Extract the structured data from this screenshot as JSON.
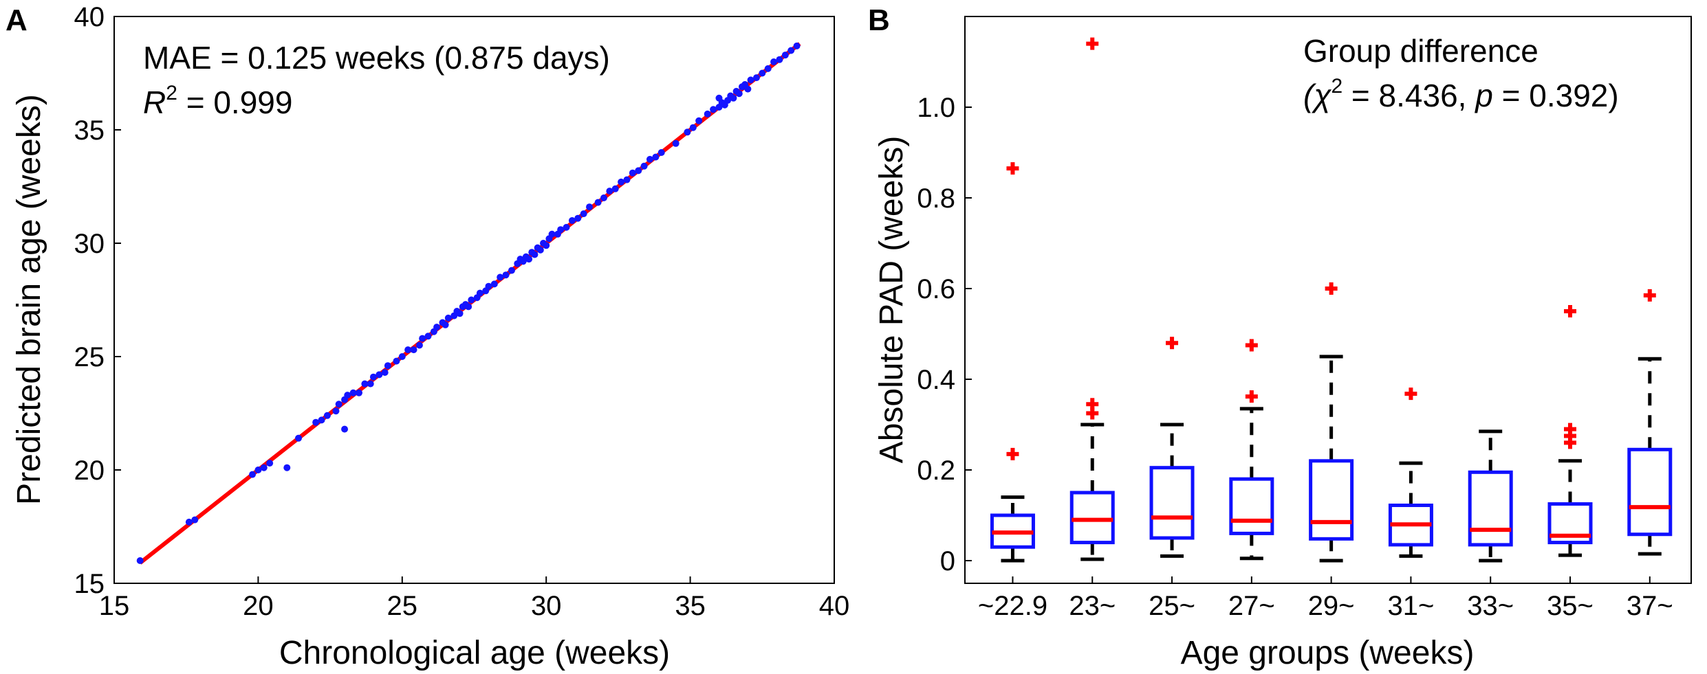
{
  "chart_data": [
    {
      "type": "scatter",
      "panel": "A",
      "xlabel": "Chronological age (weeks)",
      "ylabel": "Predicted brain age (weeks)",
      "xlim": [
        15,
        40
      ],
      "ylim": [
        15,
        40
      ],
      "xticks": [
        15,
        20,
        25,
        30,
        35,
        40
      ],
      "yticks": [
        15,
        20,
        25,
        30,
        35,
        40
      ],
      "annotation_line1": "MAE = 0.125 weeks (0.875 days)",
      "r2_label": "R",
      "r2_sup": "2",
      "r2_value": " = 0.999",
      "fit_line": {
        "x": [
          15.9,
          38.8
        ],
        "y": [
          15.9,
          38.8
        ]
      },
      "points": [
        [
          15.9,
          16.0
        ],
        [
          17.6,
          17.7
        ],
        [
          17.8,
          17.8
        ],
        [
          19.8,
          19.8
        ],
        [
          20.0,
          20.0
        ],
        [
          20.2,
          20.1
        ],
        [
          20.4,
          20.3
        ],
        [
          21.0,
          20.1
        ],
        [
          21.4,
          21.4
        ],
        [
          22.0,
          22.1
        ],
        [
          22.2,
          22.2
        ],
        [
          22.4,
          22.4
        ],
        [
          22.7,
          22.6
        ],
        [
          22.8,
          22.9
        ],
        [
          23.0,
          23.1
        ],
        [
          23.0,
          21.8
        ],
        [
          23.1,
          23.3
        ],
        [
          23.3,
          23.4
        ],
        [
          23.5,
          23.4
        ],
        [
          23.7,
          23.8
        ],
        [
          23.9,
          23.8
        ],
        [
          24.0,
          24.1
        ],
        [
          24.2,
          24.2
        ],
        [
          24.4,
          24.3
        ],
        [
          24.5,
          24.6
        ],
        [
          24.8,
          24.8
        ],
        [
          25.0,
          25.0
        ],
        [
          25.2,
          25.3
        ],
        [
          25.4,
          25.3
        ],
        [
          25.6,
          25.5
        ],
        [
          25.7,
          25.8
        ],
        [
          25.9,
          25.9
        ],
        [
          26.1,
          26.1
        ],
        [
          26.2,
          26.3
        ],
        [
          26.4,
          26.5
        ],
        [
          26.5,
          26.4
        ],
        [
          26.6,
          26.7
        ],
        [
          26.8,
          26.8
        ],
        [
          26.9,
          27.0
        ],
        [
          27.0,
          26.9
        ],
        [
          27.1,
          27.2
        ],
        [
          27.2,
          27.3
        ],
        [
          27.3,
          27.2
        ],
        [
          27.4,
          27.5
        ],
        [
          27.6,
          27.6
        ],
        [
          27.7,
          27.8
        ],
        [
          27.9,
          27.9
        ],
        [
          28.0,
          28.1
        ],
        [
          28.2,
          28.2
        ],
        [
          28.4,
          28.5
        ],
        [
          28.6,
          28.6
        ],
        [
          28.8,
          28.8
        ],
        [
          29.0,
          29.1
        ],
        [
          29.1,
          29.3
        ],
        [
          29.2,
          29.2
        ],
        [
          29.3,
          29.4
        ],
        [
          29.4,
          29.3
        ],
        [
          29.5,
          29.6
        ],
        [
          29.6,
          29.5
        ],
        [
          29.7,
          29.8
        ],
        [
          29.8,
          29.7
        ],
        [
          29.9,
          30.0
        ],
        [
          30.0,
          29.9
        ],
        [
          30.1,
          30.2
        ],
        [
          30.2,
          30.4
        ],
        [
          30.4,
          30.4
        ],
        [
          30.5,
          30.6
        ],
        [
          30.7,
          30.7
        ],
        [
          30.9,
          31.0
        ],
        [
          31.1,
          31.1
        ],
        [
          31.3,
          31.3
        ],
        [
          31.5,
          31.6
        ],
        [
          31.8,
          31.8
        ],
        [
          32.0,
          32.0
        ],
        [
          32.2,
          32.3
        ],
        [
          32.4,
          32.4
        ],
        [
          32.6,
          32.7
        ],
        [
          32.8,
          32.8
        ],
        [
          33.0,
          33.1
        ],
        [
          33.2,
          33.2
        ],
        [
          33.4,
          33.4
        ],
        [
          33.6,
          33.7
        ],
        [
          33.8,
          33.8
        ],
        [
          34.0,
          34.0
        ],
        [
          34.5,
          34.4
        ],
        [
          34.9,
          34.9
        ],
        [
          35.1,
          35.1
        ],
        [
          35.3,
          35.4
        ],
        [
          35.6,
          35.7
        ],
        [
          35.8,
          35.9
        ],
        [
          36.0,
          36.0
        ],
        [
          36.0,
          36.4
        ],
        [
          36.1,
          36.2
        ],
        [
          36.2,
          36.1
        ],
        [
          36.3,
          36.3
        ],
        [
          36.4,
          36.5
        ],
        [
          36.5,
          36.4
        ],
        [
          36.6,
          36.7
        ],
        [
          36.7,
          36.6
        ],
        [
          36.8,
          36.9
        ],
        [
          36.9,
          37.0
        ],
        [
          37.0,
          36.8
        ],
        [
          37.1,
          37.2
        ],
        [
          37.3,
          37.3
        ],
        [
          37.5,
          37.5
        ],
        [
          37.7,
          37.7
        ],
        [
          37.9,
          38.0
        ],
        [
          38.1,
          38.1
        ],
        [
          38.3,
          38.3
        ],
        [
          38.5,
          38.5
        ],
        [
          38.7,
          38.7
        ]
      ]
    },
    {
      "type": "box",
      "panel": "B",
      "xlabel": "Age groups (weeks)",
      "ylabel": "Absolute PAD (weeks)",
      "ylim": [
        -0.05,
        1.2
      ],
      "yticks": [
        0,
        0.2,
        0.4,
        0.6,
        0.8,
        1.0
      ],
      "ytick_labels": [
        "0",
        "0.2",
        "0.4",
        "0.6",
        "0.8",
        "1.0"
      ],
      "annotation_line1": "Group difference",
      "chi_open": "(χ",
      "chi_sup": "2",
      "chi_mid": " = 8.436, ",
      "p_label": "p",
      "chi_end": " = 0.392)",
      "categories": [
        "~22.9",
        "23~",
        "25~",
        "27~",
        "29~",
        "31~",
        "33~",
        "35~",
        "37~"
      ],
      "boxes": [
        {
          "whislo": 0.0,
          "q1": 0.03,
          "med": 0.062,
          "q3": 0.1,
          "whishi": 0.14,
          "fliers": [
            0.235,
            0.865
          ]
        },
        {
          "whislo": 0.003,
          "q1": 0.04,
          "med": 0.09,
          "q3": 0.15,
          "whishi": 0.3,
          "fliers": [
            0.325,
            0.345,
            1.14
          ]
        },
        {
          "whislo": 0.01,
          "q1": 0.05,
          "med": 0.095,
          "q3": 0.205,
          "whishi": 0.3,
          "fliers": [
            0.48
          ]
        },
        {
          "whislo": 0.005,
          "q1": 0.06,
          "med": 0.088,
          "q3": 0.18,
          "whishi": 0.335,
          "fliers": [
            0.362,
            0.475
          ]
        },
        {
          "whislo": 0.0,
          "q1": 0.048,
          "med": 0.085,
          "q3": 0.22,
          "whishi": 0.45,
          "fliers": [
            0.6
          ]
        },
        {
          "whislo": 0.01,
          "q1": 0.035,
          "med": 0.08,
          "q3": 0.122,
          "whishi": 0.215,
          "fliers": [
            0.368
          ]
        },
        {
          "whislo": 0.0,
          "q1": 0.035,
          "med": 0.068,
          "q3": 0.195,
          "whishi": 0.285,
          "fliers": []
        },
        {
          "whislo": 0.012,
          "q1": 0.04,
          "med": 0.055,
          "q3": 0.125,
          "whishi": 0.22,
          "fliers": [
            0.26,
            0.275,
            0.29,
            0.55
          ]
        },
        {
          "whislo": 0.015,
          "q1": 0.058,
          "med": 0.118,
          "q3": 0.245,
          "whishi": 0.445,
          "fliers": [
            0.585
          ]
        }
      ]
    }
  ]
}
